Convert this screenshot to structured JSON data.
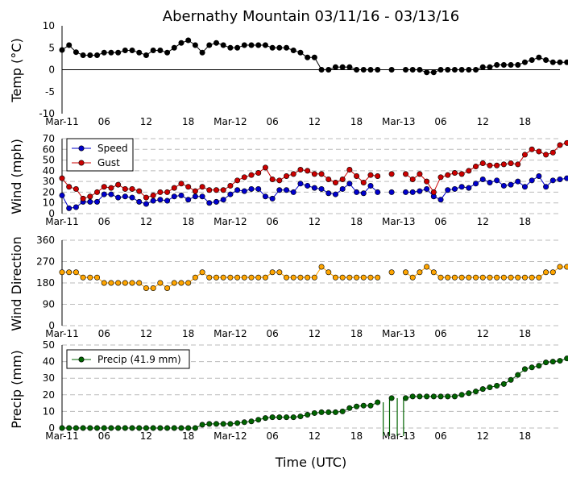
{
  "title": "Abernathy Mountain 03/11/16 - 03/13/16",
  "xlabel": "Time (UTC)",
  "x_tick_labels": [
    "Mar-11",
    "06",
    "12",
    "18",
    "Mar-12",
    "06",
    "12",
    "18",
    "Mar-13",
    "06",
    "12",
    "18"
  ],
  "x_tick_hours": [
    0,
    6,
    12,
    18,
    24,
    30,
    36,
    42,
    48,
    54,
    60,
    66
  ],
  "x_range_hours": [
    0,
    71
  ],
  "colors": {
    "temp": "#000000",
    "speed": "#0000cc",
    "gust": "#cc0000",
    "direction": "#ffa500",
    "precip": "#006400",
    "grid": "#bbbbbb"
  },
  "chart_data": [
    {
      "type": "line",
      "id": "temp",
      "ylabel": "Temp (°C)",
      "ylim": [
        -10,
        10
      ],
      "yticks": [
        -10,
        -5,
        0,
        5,
        10
      ],
      "grid": false,
      "zero_line": true,
      "series": [
        {
          "name": "Temp",
          "values": [
            4.5,
            5.6,
            4,
            3.3,
            3.3,
            3.3,
            3.9,
            3.9,
            3.9,
            4.4,
            4.4,
            3.9,
            3.3,
            4.4,
            4.4,
            3.9,
            5,
            6.1,
            6.7,
            5.6,
            3.9,
            5.6,
            6.1,
            5.6,
            5,
            5,
            5.6,
            5.6,
            5.6,
            5.6,
            5,
            5,
            5,
            4.4,
            3.9,
            2.8,
            2.8,
            0,
            0,
            0.6,
            0.6,
            0.6,
            0,
            0,
            0,
            0,
            null,
            0,
            null,
            0,
            0,
            0,
            -0.6,
            -0.6,
            0,
            0,
            0,
            0,
            0,
            0,
            0.6,
            0.6,
            1.1,
            1.1,
            1.1,
            1.1,
            1.7,
            2.2,
            2.8,
            2.2,
            1.7,
            1.7,
            1.7
          ]
        }
      ]
    },
    {
      "type": "line",
      "id": "wind",
      "ylabel": "Wind (mph)",
      "ylim": [
        0,
        70
      ],
      "yticks": [
        0,
        10,
        20,
        30,
        40,
        50,
        60,
        70
      ],
      "grid": true,
      "legend": "top-left",
      "series": [
        {
          "name": "Speed",
          "values": [
            17,
            5,
            6,
            11,
            11,
            11,
            18,
            18,
            15,
            16,
            15,
            11,
            9,
            12,
            13,
            12,
            16,
            17,
            13,
            16,
            16,
            10,
            11,
            13,
            18,
            22,
            21,
            23,
            23,
            16,
            14,
            22,
            22,
            20,
            28,
            26,
            24,
            23,
            19,
            18,
            23,
            28,
            20,
            19,
            26,
            20,
            null,
            20,
            null,
            20,
            20,
            21,
            23,
            16,
            13,
            22,
            23,
            25,
            24,
            28,
            32,
            29,
            31,
            26,
            27,
            30,
            25,
            31,
            35,
            25,
            31,
            32,
            33
          ]
        },
        {
          "name": "Gust",
          "values": [
            33,
            25,
            23,
            14,
            16,
            20,
            25,
            24,
            27,
            23,
            23,
            21,
            15,
            17,
            20,
            20,
            24,
            28,
            25,
            21,
            25,
            22,
            22,
            22,
            26,
            31,
            34,
            36,
            38,
            43,
            32,
            31,
            35,
            37,
            41,
            40,
            37,
            37,
            32,
            29,
            32,
            41,
            35,
            29,
            36,
            35,
            null,
            37,
            null,
            37,
            32,
            37,
            30,
            20,
            34,
            36,
            38,
            37,
            40,
            44,
            47,
            45,
            45,
            46,
            47,
            46,
            55,
            60,
            58,
            55,
            57,
            64,
            66
          ]
        }
      ]
    },
    {
      "type": "scatter",
      "id": "direction",
      "ylabel": "Wind Direction",
      "ylim": [
        0,
        360
      ],
      "yticks": [
        0,
        90,
        180,
        270,
        360
      ],
      "grid": true,
      "series": [
        {
          "name": "Wind Direction",
          "values": [
            225,
            225,
            225,
            203,
            203,
            203,
            180,
            180,
            180,
            180,
            180,
            180,
            158,
            158,
            180,
            158,
            180,
            180,
            180,
            203,
            225,
            203,
            203,
            203,
            203,
            203,
            203,
            203,
            203,
            203,
            225,
            225,
            203,
            203,
            203,
            203,
            203,
            248,
            225,
            203,
            203,
            203,
            203,
            203,
            203,
            203,
            null,
            225,
            null,
            225,
            203,
            225,
            248,
            225,
            203,
            203,
            203,
            203,
            203,
            203,
            203,
            203,
            203,
            203,
            203,
            203,
            203,
            203,
            203,
            225,
            225,
            248,
            248
          ]
        }
      ]
    },
    {
      "type": "line",
      "id": "precip",
      "ylabel": "Precip (mm)",
      "ylim": [
        0,
        50
      ],
      "yticks": [
        0,
        10,
        20,
        30,
        40,
        50
      ],
      "grid": true,
      "legend": "top-left",
      "series": [
        {
          "name": "Precip (41.9 mm)",
          "values": [
            0,
            0,
            0,
            0,
            0,
            0,
            0,
            0,
            0,
            0,
            0,
            0,
            0,
            0,
            0,
            0,
            0,
            0,
            0,
            0,
            2,
            2.5,
            2.5,
            2.5,
            2.5,
            3,
            3.5,
            4,
            5,
            6,
            6.5,
            6.5,
            6.5,
            6.5,
            7,
            8,
            9,
            9.5,
            9.5,
            9.5,
            10,
            12,
            13,
            13.5,
            13.5,
            15.5,
            null,
            18,
            null,
            18,
            19,
            19,
            19,
            19,
            19,
            19,
            19,
            20,
            21,
            22,
            23.5,
            24.5,
            25.5,
            26.5,
            29,
            32,
            35.5,
            36.5,
            37.5,
            39.5,
            40,
            40.5,
            41.9
          ]
        }
      ]
    }
  ]
}
